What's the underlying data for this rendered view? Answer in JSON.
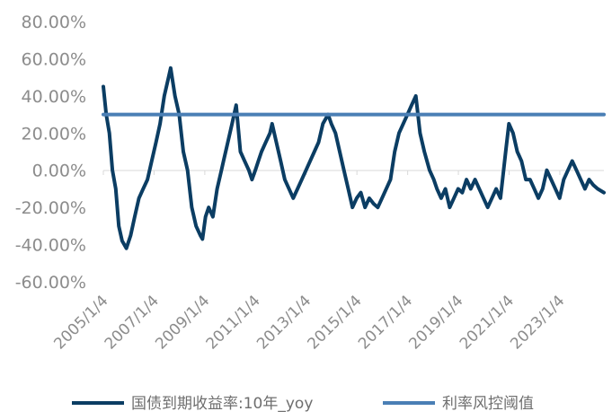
{
  "chart_data": {
    "type": "line",
    "x_tick_labels": [
      "2005/1/4",
      "2007/1/4",
      "2009/1/4",
      "2011/1/4",
      "2013/1/4",
      "2015/1/4",
      "2017/1/4",
      "2019/1/4",
      "2021/1/4",
      "2023/1/4"
    ],
    "y_tick_labels": [
      "80.00%",
      "60.00%",
      "40.00%",
      "20.00%",
      "0.00%",
      "-20.00%",
      "-40.00%",
      "-60.00%"
    ],
    "ylim": [
      -60,
      80
    ],
    "xlim": [
      "2005-01-04",
      "2024-09-30"
    ],
    "grid": false,
    "legend_position": "bottom",
    "colors": {
      "yoy": "#0b3d63",
      "threshold": "#4a7fb5",
      "axis": "#d9d9d9",
      "text": "#8c8c8c"
    },
    "series": [
      {
        "name": "国债到期收益率:10年_yoy",
        "x": [
          "2005-01-04",
          "2005-02-15",
          "2005-04-01",
          "2005-05-15",
          "2005-07-01",
          "2005-08-15",
          "2005-10-01",
          "2005-12-01",
          "2006-02-01",
          "2006-04-01",
          "2006-06-01",
          "2006-08-01",
          "2006-10-01",
          "2006-12-01",
          "2007-02-01",
          "2007-04-01",
          "2007-06-01",
          "2007-08-01",
          "2007-09-01",
          "2007-11-01",
          "2008-01-01",
          "2008-03-01",
          "2008-05-01",
          "2008-07-01",
          "2008-09-01",
          "2008-11-01",
          "2008-12-01",
          "2009-01-15",
          "2009-03-01",
          "2009-05-01",
          "2009-07-01",
          "2009-09-01",
          "2009-10-01",
          "2009-12-01",
          "2010-02-01",
          "2010-04-01",
          "2010-06-01",
          "2010-08-01",
          "2010-10-01",
          "2010-11-15",
          "2011-01-01",
          "2011-02-15",
          "2011-04-01",
          "2011-06-01",
          "2011-08-01",
          "2011-09-01",
          "2011-11-01",
          "2012-01-01",
          "2012-03-01",
          "2012-05-01",
          "2012-07-01",
          "2012-09-01",
          "2012-11-01",
          "2013-01-01",
          "2013-03-01",
          "2013-05-01",
          "2013-07-01",
          "2013-09-01",
          "2013-11-15",
          "2014-01-01",
          "2014-03-01",
          "2014-05-01",
          "2014-07-01",
          "2014-09-01",
          "2014-11-01",
          "2015-01-01",
          "2015-03-01",
          "2015-05-01",
          "2015-07-01",
          "2015-09-01",
          "2015-11-01",
          "2016-01-01",
          "2016-03-01",
          "2016-05-01",
          "2016-07-01",
          "2016-09-01",
          "2016-11-01",
          "2017-01-01",
          "2017-03-01",
          "2017-05-01",
          "2017-07-01",
          "2017-09-01",
          "2017-11-15",
          "2018-01-15",
          "2018-03-01",
          "2018-05-01",
          "2018-07-01",
          "2018-09-01",
          "2018-11-01",
          "2019-01-01",
          "2019-03-01",
          "2019-05-01",
          "2019-07-01",
          "2019-09-01",
          "2019-11-01",
          "2020-01-01",
          "2020-03-01",
          "2020-05-01",
          "2020-07-01",
          "2020-09-01",
          "2020-11-15",
          "2021-01-01",
          "2021-03-01",
          "2021-05-01",
          "2021-07-01",
          "2021-09-01",
          "2021-11-01",
          "2022-01-01",
          "2022-03-01",
          "2022-05-01",
          "2022-07-01",
          "2022-09-01",
          "2022-11-01",
          "2023-01-01",
          "2023-03-01",
          "2023-05-01",
          "2023-07-01",
          "2023-09-01",
          "2023-11-01",
          "2024-01-01",
          "2024-03-01",
          "2024-05-01",
          "2024-07-01",
          "2024-09-30"
        ],
        "values": [
          45,
          30,
          20,
          0,
          -10,
          -30,
          -38,
          -42,
          -35,
          -25,
          -15,
          -10,
          -5,
          5,
          15,
          25,
          40,
          50,
          55,
          40,
          30,
          10,
          0,
          -20,
          -30,
          -35,
          -37,
          -25,
          -20,
          -25,
          -10,
          0,
          5,
          15,
          25,
          35,
          10,
          5,
          0,
          -5,
          0,
          5,
          10,
          15,
          20,
          25,
          15,
          5,
          -5,
          -10,
          -15,
          -10,
          -5,
          0,
          5,
          10,
          15,
          25,
          30,
          25,
          20,
          10,
          0,
          -10,
          -20,
          -15,
          -12,
          -20,
          -15,
          -18,
          -20,
          -15,
          -10,
          -5,
          10,
          20,
          25,
          30,
          35,
          40,
          20,
          10,
          0,
          -5,
          -10,
          -15,
          -10,
          -20,
          -15,
          -10,
          -12,
          -5,
          -10,
          -5,
          -10,
          -15,
          -20,
          -15,
          -10,
          -15,
          10,
          25,
          20,
          10,
          5,
          -5,
          -5,
          -10,
          -15,
          -10,
          0,
          -5,
          -10,
          -15,
          -5,
          0,
          5,
          0,
          -5,
          -10,
          -5,
          -8,
          -10,
          -12
        ]
      },
      {
        "name": "利率风控阈值",
        "x": [
          "2005-01-04",
          "2024-09-30"
        ],
        "values": [
          30,
          30
        ]
      }
    ]
  }
}
